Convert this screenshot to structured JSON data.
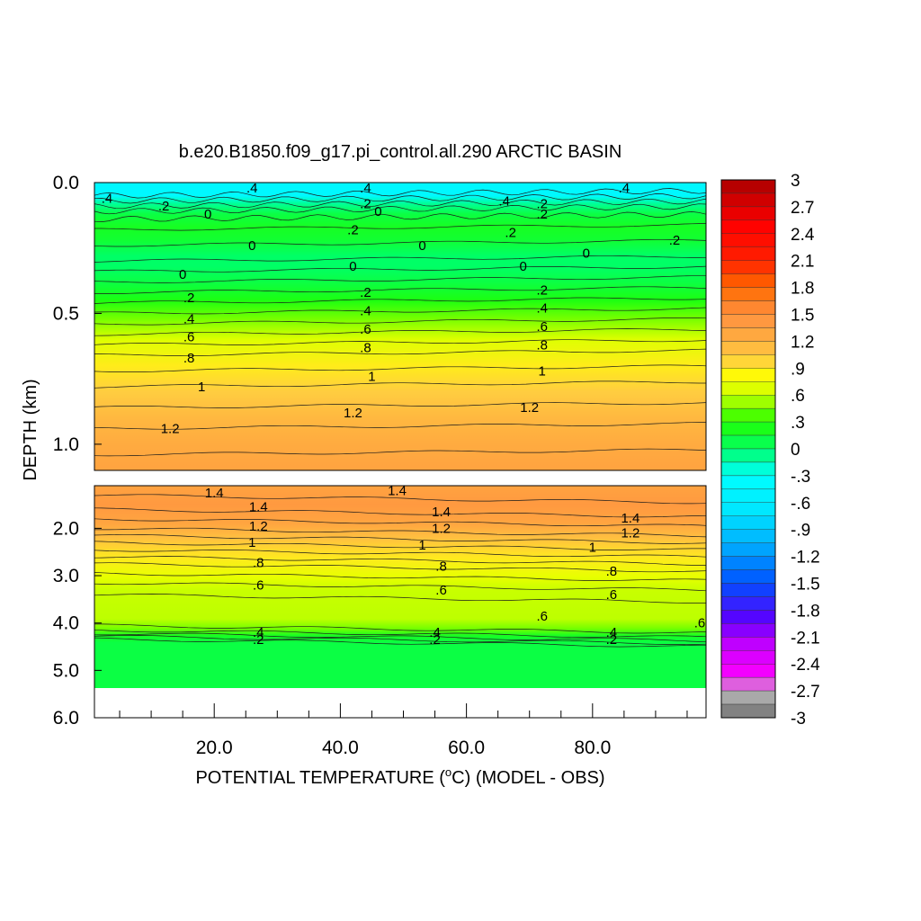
{
  "chart_data": {
    "type": "heatmap",
    "title": "b.e20.B1850.f09_g17.pi_control.all.290 ARCTIC BASIN",
    "xlabel_parts": {
      "pre": "POTENTIAL TEMPERATURE (",
      "sup": "o",
      "post": "C) (MODEL - OBS)"
    },
    "ylabel": "DEPTH (km)",
    "x_ticks": [
      "20.0",
      "40.0",
      "60.0",
      "80.0"
    ],
    "x_tick_values": [
      20,
      40,
      60,
      80
    ],
    "xlim": [
      1,
      98
    ],
    "upper_panel": {
      "ylim": [
        0.0,
        1.1
      ],
      "y_ticks": [
        "0.0",
        "0.5",
        "1.0"
      ],
      "y_tick_values": [
        0.0,
        0.5,
        1.0
      ]
    },
    "lower_panel": {
      "ylim": [
        1.1,
        6.0
      ],
      "y_ticks": [
        "2.0",
        "3.0",
        "4.0",
        "5.0",
        "6.0"
      ],
      "y_tick_values": [
        2.0,
        3.0,
        4.0,
        5.0,
        6.0
      ],
      "bottom_of_data_km": 5.35
    },
    "colorbar": {
      "labels": [
        "3",
        "2.7",
        "2.4",
        "2.1",
        "1.8",
        "1.5",
        "1.2",
        ".9",
        ".6",
        ".3",
        "0",
        "-.3",
        "-.6",
        "-.9",
        "-1.2",
        "-1.5",
        "-1.8",
        "-2.1",
        "-2.4",
        "-2.7",
        "-3"
      ],
      "range": [
        -3,
        3
      ]
    },
    "depth_profile": [
      {
        "depth": 0.0,
        "value": -0.45
      },
      {
        "depth": 0.05,
        "value": -0.4
      },
      {
        "depth": 0.08,
        "value": -0.1
      },
      {
        "depth": 0.12,
        "value": 0.1
      },
      {
        "depth": 0.17,
        "value": 0.2
      },
      {
        "depth": 0.22,
        "value": 0.15
      },
      {
        "depth": 0.28,
        "value": 0.0
      },
      {
        "depth": 0.32,
        "value": 0.0
      },
      {
        "depth": 0.38,
        "value": 0.1
      },
      {
        "depth": 0.45,
        "value": 0.25
      },
      {
        "depth": 0.52,
        "value": 0.45
      },
      {
        "depth": 0.6,
        "value": 0.68
      },
      {
        "depth": 0.7,
        "value": 0.88
      },
      {
        "depth": 0.8,
        "value": 1.02
      },
      {
        "depth": 0.9,
        "value": 1.15
      },
      {
        "depth": 1.0,
        "value": 1.25
      },
      {
        "depth": 1.1,
        "value": 1.32
      },
      {
        "depth": 1.5,
        "value": 1.42
      },
      {
        "depth": 1.9,
        "value": 1.3
      },
      {
        "depth": 2.2,
        "value": 1.1
      },
      {
        "depth": 2.6,
        "value": 0.9
      },
      {
        "depth": 3.0,
        "value": 0.72
      },
      {
        "depth": 3.3,
        "value": 0.6
      },
      {
        "depth": 3.9,
        "value": 0.58
      },
      {
        "depth": 4.1,
        "value": 0.45
      },
      {
        "depth": 4.25,
        "value": 0.2
      },
      {
        "depth": 4.4,
        "value": 0.1
      },
      {
        "depth": 5.35,
        "value": 0.1
      }
    ],
    "contour_labels": [
      {
        "text": ".4",
        "x": 26,
        "depth": 0.02
      },
      {
        "text": ".4",
        "x": 44,
        "depth": 0.02
      },
      {
        "text": ".4",
        "x": 85,
        "depth": 0.02
      },
      {
        "text": ".4",
        "x": 3,
        "depth": 0.06
      },
      {
        "text": ".2",
        "x": 12,
        "depth": 0.09
      },
      {
        "text": "0",
        "x": 19,
        "depth": 0.12
      },
      {
        "text": ".2",
        "x": 44,
        "depth": 0.08
      },
      {
        "text": "0",
        "x": 46,
        "depth": 0.11
      },
      {
        "text": ".4",
        "x": 66,
        "depth": 0.07
      },
      {
        "text": ".2",
        "x": 72,
        "depth": 0.08
      },
      {
        "text": ".2",
        "x": 72,
        "depth": 0.12
      },
      {
        "text": ".2",
        "x": 42,
        "depth": 0.18
      },
      {
        "text": ".2",
        "x": 67,
        "depth": 0.19
      },
      {
        "text": ".2",
        "x": 93,
        "depth": 0.22
      },
      {
        "text": "0",
        "x": 26,
        "depth": 0.24
      },
      {
        "text": "0",
        "x": 53,
        "depth": 0.24
      },
      {
        "text": "0",
        "x": 79,
        "depth": 0.27
      },
      {
        "text": "0",
        "x": 15,
        "depth": 0.35
      },
      {
        "text": "0",
        "x": 42,
        "depth": 0.32
      },
      {
        "text": "0",
        "x": 69,
        "depth": 0.32
      },
      {
        "text": ".2",
        "x": 16,
        "depth": 0.44
      },
      {
        "text": ".2",
        "x": 44,
        "depth": 0.42
      },
      {
        "text": ".2",
        "x": 72,
        "depth": 0.41
      },
      {
        "text": ".4",
        "x": 16,
        "depth": 0.52
      },
      {
        "text": ".4",
        "x": 44,
        "depth": 0.49
      },
      {
        "text": ".4",
        "x": 72,
        "depth": 0.48
      },
      {
        "text": ".6",
        "x": 16,
        "depth": 0.59
      },
      {
        "text": ".6",
        "x": 44,
        "depth": 0.56
      },
      {
        "text": ".6",
        "x": 72,
        "depth": 0.55
      },
      {
        "text": ".8",
        "x": 16,
        "depth": 0.67
      },
      {
        "text": ".8",
        "x": 44,
        "depth": 0.63
      },
      {
        "text": ".8",
        "x": 72,
        "depth": 0.62
      },
      {
        "text": "1",
        "x": 18,
        "depth": 0.78
      },
      {
        "text": "1",
        "x": 45,
        "depth": 0.74
      },
      {
        "text": "1",
        "x": 72,
        "depth": 0.72
      },
      {
        "text": "1.2",
        "x": 13,
        "depth": 0.94
      },
      {
        "text": "1.2",
        "x": 42,
        "depth": 0.88
      },
      {
        "text": "1.2",
        "x": 70,
        "depth": 0.86
      },
      {
        "text": "1.4",
        "x": 20,
        "depth": 1.25
      },
      {
        "text": "1.4",
        "x": 49,
        "depth": 1.2
      },
      {
        "text": "1.4",
        "x": 27,
        "depth": 1.55
      },
      {
        "text": "1.4",
        "x": 56,
        "depth": 1.65
      },
      {
        "text": "1.4",
        "x": 86,
        "depth": 1.78
      },
      {
        "text": "1.2",
        "x": 27,
        "depth": 1.95
      },
      {
        "text": "1.2",
        "x": 56,
        "depth": 2.0
      },
      {
        "text": "1.2",
        "x": 86,
        "depth": 2.1
      },
      {
        "text": "1",
        "x": 26,
        "depth": 2.3
      },
      {
        "text": "1",
        "x": 53,
        "depth": 2.35
      },
      {
        "text": "1",
        "x": 80,
        "depth": 2.4
      },
      {
        "text": ".8",
        "x": 27,
        "depth": 2.72
      },
      {
        "text": ".8",
        "x": 56,
        "depth": 2.8
      },
      {
        "text": ".8",
        "x": 83,
        "depth": 2.9
      },
      {
        "text": ".6",
        "x": 27,
        "depth": 3.2
      },
      {
        "text": ".6",
        "x": 56,
        "depth": 3.3
      },
      {
        "text": ".6",
        "x": 83,
        "depth": 3.4
      },
      {
        "text": ".6",
        "x": 72,
        "depth": 3.85
      },
      {
        "text": ".6",
        "x": 97,
        "depth": 4.0
      },
      {
        "text": ".4",
        "x": 27,
        "depth": 4.2
      },
      {
        "text": ".4",
        "x": 55,
        "depth": 4.2
      },
      {
        "text": ".4",
        "x": 83,
        "depth": 4.2
      },
      {
        "text": ".2",
        "x": 27,
        "depth": 4.35
      },
      {
        "text": ".2",
        "x": 55,
        "depth": 4.35
      },
      {
        "text": ".2",
        "x": 83,
        "depth": 4.35
      }
    ]
  }
}
